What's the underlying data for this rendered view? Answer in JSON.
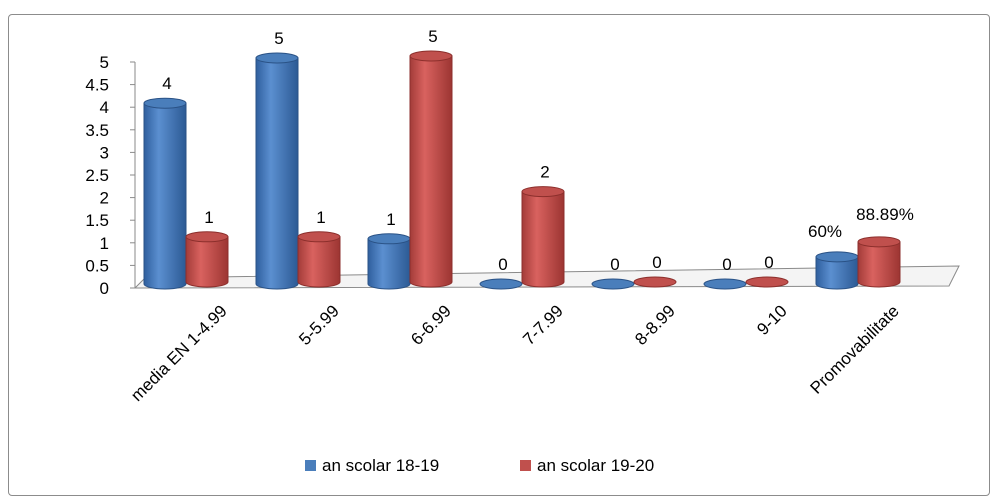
{
  "chart_data": {
    "type": "bar",
    "style": "3d-cylinder",
    "categories": [
      "media EN 1-4.99",
      "5-5.99",
      "6-6.99",
      "7-7.99",
      "8-8.99",
      "9-10",
      "Promovabilitate"
    ],
    "series": [
      {
        "name": "an scolar 18-19",
        "color": "#4a7ebb",
        "values": [
          4,
          5,
          1,
          0,
          0,
          0,
          0.6
        ],
        "labels": [
          "4",
          "5",
          "1",
          "0",
          "0",
          "0",
          "60%"
        ]
      },
      {
        "name": "an scolar 19-20",
        "color": "#c0504d",
        "values": [
          1,
          1,
          5,
          2,
          0,
          0,
          0.8889
        ],
        "labels": [
          "1",
          "1",
          "5",
          "2",
          "0",
          "0",
          "88.89%"
        ]
      }
    ],
    "yticks": [
      "0",
      "0.5",
      "1",
      "1.5",
      "2",
      "2.5",
      "3",
      "3.5",
      "4",
      "4.5",
      "5"
    ],
    "ylim": [
      0,
      5
    ],
    "grid": false,
    "legend_position": "bottom"
  }
}
